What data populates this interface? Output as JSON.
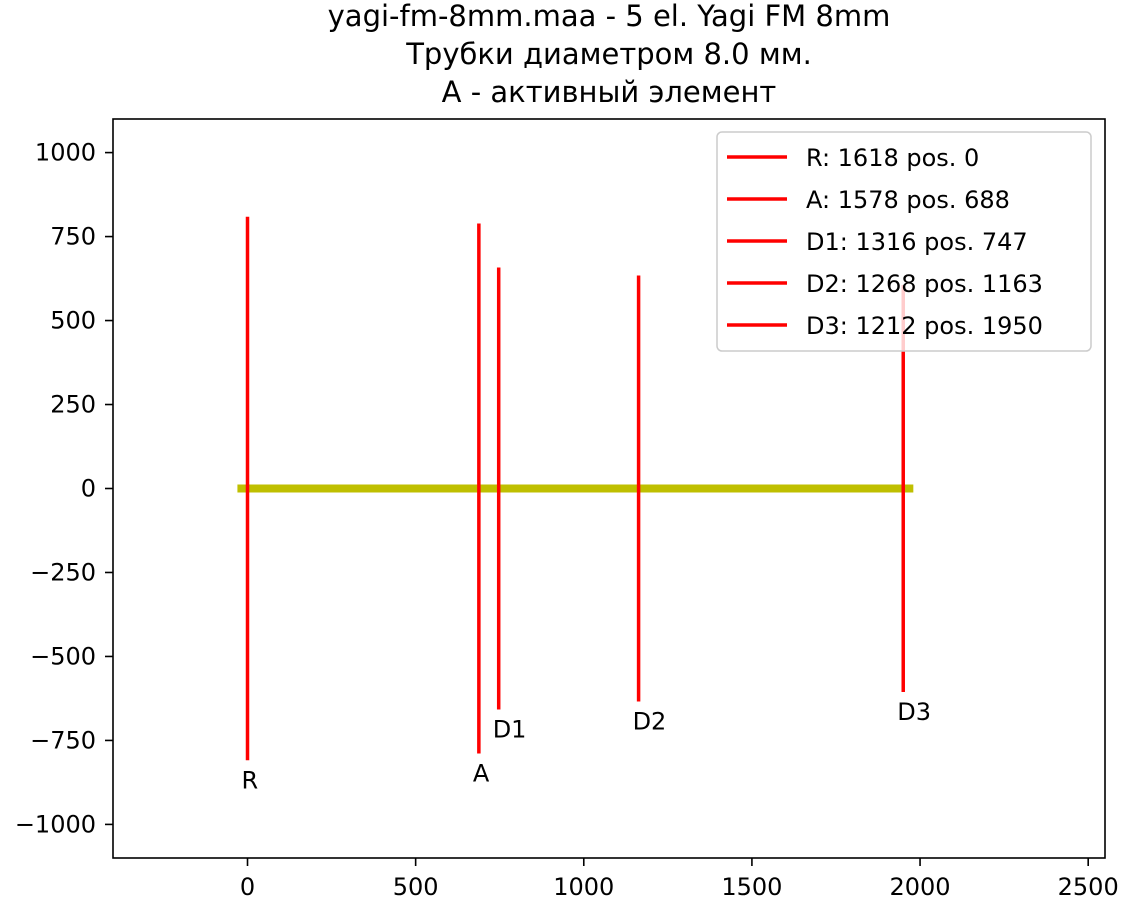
{
  "chart_data": {
    "type": "line",
    "title_lines": [
      "yagi-fm-8mm.maa - 5 el. Yagi FM 8mm",
      "Трубки диаметром 8.0 мм.",
      "A - активный элемент"
    ],
    "xlim": [
      -400,
      2550
    ],
    "ylim": [
      -1100,
      1100
    ],
    "x_ticks": [
      0,
      500,
      1000,
      1500,
      2000,
      2500
    ],
    "x_tick_labels": [
      "0",
      "500",
      "1000",
      "1500",
      "2000",
      "2500"
    ],
    "y_ticks": [
      1000,
      750,
      500,
      250,
      0,
      -250,
      -500,
      -750,
      -1000
    ],
    "y_tick_labels": [
      "1000",
      "750",
      "500",
      "250",
      "0",
      "−250",
      "−500",
      "−750",
      "−1000"
    ],
    "grid": false,
    "legend_position": "top-right",
    "boom": {
      "x": [
        -30,
        1980
      ],
      "y": 0,
      "color": "#bfbf00"
    },
    "element_color": "#ff0000",
    "series": [
      {
        "name": "R: 1618 pos. 0",
        "label": "R",
        "x": 0,
        "length": 1618
      },
      {
        "name": "A: 1578 pos. 688",
        "label": "A",
        "x": 688,
        "length": 1578
      },
      {
        "name": "D1: 1316 pos. 747",
        "label": "D1",
        "x": 747,
        "length": 1316
      },
      {
        "name": "D2: 1268 pos. 1163",
        "label": "D2",
        "x": 1163,
        "length": 1268
      },
      {
        "name": "D3: 1212 pos. 1950",
        "label": "D3",
        "x": 1950,
        "length": 1212
      }
    ]
  }
}
